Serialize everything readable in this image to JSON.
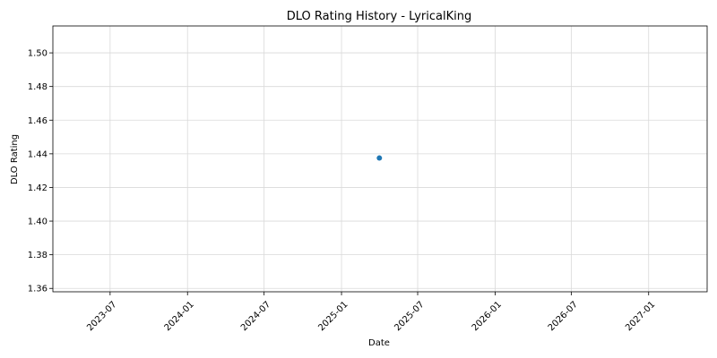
{
  "chart_data": {
    "type": "scatter",
    "title": "DLO Rating History - LyricalKing",
    "xlabel": "Date",
    "ylabel": "DLO Rating",
    "x_tick_labels": [
      "2023-07",
      "2024-01",
      "2024-07",
      "2025-01",
      "2025-07",
      "2026-01",
      "2026-07",
      "2027-01"
    ],
    "y_tick_labels": [
      "1.36",
      "1.38",
      "1.40",
      "1.42",
      "1.44",
      "1.46",
      "1.48",
      "1.50"
    ],
    "xlim": [
      "2023-02-15",
      "2027-05-20"
    ],
    "ylim": [
      1.358,
      1.516
    ],
    "grid": true,
    "series": [
      {
        "points": [
          {
            "x": "2025-04-01",
            "y": 1.4375
          }
        ]
      }
    ],
    "colors": {
      "point": "#1f77b4",
      "grid": "#d9d9d9",
      "axes": "#000000"
    }
  }
}
